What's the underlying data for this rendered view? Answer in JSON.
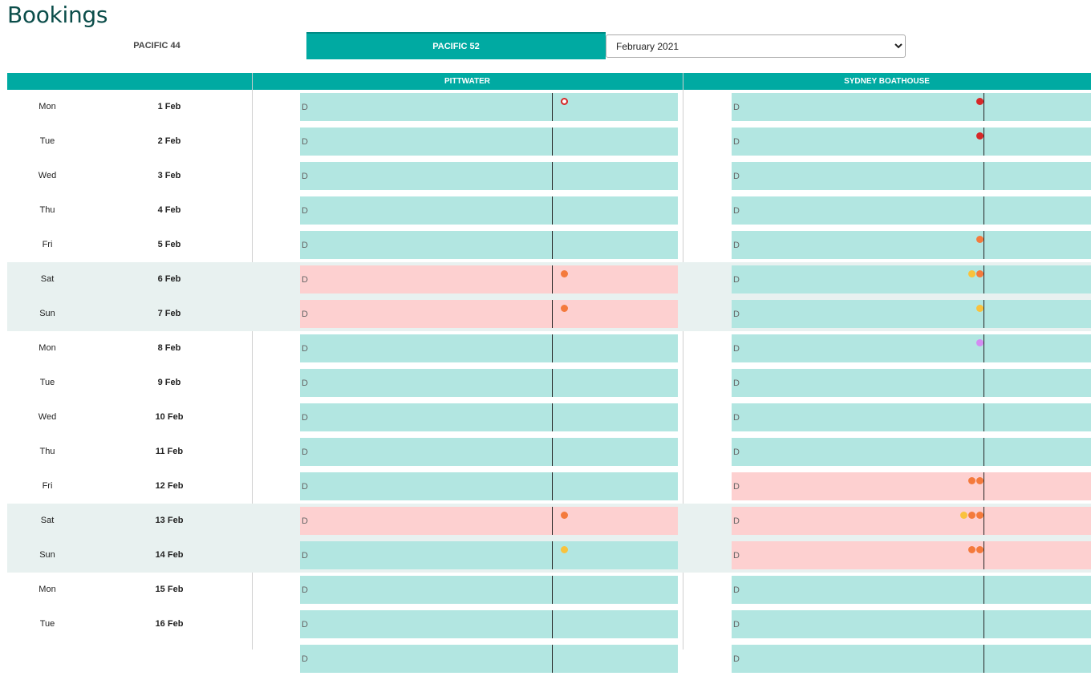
{
  "title": "Bookings",
  "vessels": [
    {
      "label": "PACIFIC 44",
      "active": false
    },
    {
      "label": "PACIFIC 52",
      "active": true
    }
  ],
  "month_select": {
    "value": "February 2021",
    "options": [
      "February 2021"
    ]
  },
  "columns": {
    "pittwater": "PITTWATER",
    "sydney": "SYDNEY BOATHOUSE"
  },
  "slot_mark": "D",
  "colors": {
    "accent": "#00aaa2",
    "available": "#b2e6e1",
    "booked": "#fdd0d0",
    "weekend_row": "#e8f1f0",
    "dot_red": "#d62828",
    "dot_orange": "#f47a3c",
    "dot_yellow": "#f9c23c",
    "dot_purple": "#d38cf2"
  },
  "days": [
    {
      "dow": "Mon",
      "date": "1 Feb",
      "weekend": false,
      "pittwater": {
        "status": "avail",
        "dots": [
          {
            "color": "#d62828",
            "outline": true
          }
        ]
      },
      "sydney": {
        "status": "avail",
        "dots": [
          {
            "color": "#d62828"
          }
        ]
      }
    },
    {
      "dow": "Tue",
      "date": "2 Feb",
      "weekend": false,
      "pittwater": {
        "status": "avail",
        "dots": []
      },
      "sydney": {
        "status": "avail",
        "dots": [
          {
            "color": "#d62828"
          }
        ]
      }
    },
    {
      "dow": "Wed",
      "date": "3 Feb",
      "weekend": false,
      "pittwater": {
        "status": "avail",
        "dots": []
      },
      "sydney": {
        "status": "avail",
        "dots": []
      }
    },
    {
      "dow": "Thu",
      "date": "4 Feb",
      "weekend": false,
      "pittwater": {
        "status": "avail",
        "dots": []
      },
      "sydney": {
        "status": "avail",
        "dots": []
      }
    },
    {
      "dow": "Fri",
      "date": "5 Feb",
      "weekend": false,
      "pittwater": {
        "status": "avail",
        "dots": []
      },
      "sydney": {
        "status": "avail",
        "dots": [
          {
            "color": "#f47a3c"
          }
        ]
      }
    },
    {
      "dow": "Sat",
      "date": "6 Feb",
      "weekend": true,
      "pittwater": {
        "status": "busy",
        "dots": [
          {
            "color": "#f47a3c"
          }
        ]
      },
      "sydney": {
        "status": "avail",
        "dots": [
          {
            "color": "#f9c23c"
          },
          {
            "color": "#f47a3c"
          }
        ]
      }
    },
    {
      "dow": "Sun",
      "date": "7 Feb",
      "weekend": true,
      "pittwater": {
        "status": "busy",
        "dots": [
          {
            "color": "#f47a3c"
          }
        ]
      },
      "sydney": {
        "status": "avail",
        "dots": [
          {
            "color": "#f9c23c"
          }
        ]
      }
    },
    {
      "dow": "Mon",
      "date": "8 Feb",
      "weekend": false,
      "pittwater": {
        "status": "avail",
        "dots": []
      },
      "sydney": {
        "status": "avail",
        "dots": [
          {
            "color": "#d38cf2"
          }
        ]
      }
    },
    {
      "dow": "Tue",
      "date": "9 Feb",
      "weekend": false,
      "pittwater": {
        "status": "avail",
        "dots": []
      },
      "sydney": {
        "status": "avail",
        "dots": []
      }
    },
    {
      "dow": "Wed",
      "date": "10 Feb",
      "weekend": false,
      "pittwater": {
        "status": "avail",
        "dots": []
      },
      "sydney": {
        "status": "avail",
        "dots": []
      }
    },
    {
      "dow": "Thu",
      "date": "11 Feb",
      "weekend": false,
      "pittwater": {
        "status": "avail",
        "dots": []
      },
      "sydney": {
        "status": "avail",
        "dots": []
      }
    },
    {
      "dow": "Fri",
      "date": "12 Feb",
      "weekend": false,
      "pittwater": {
        "status": "avail",
        "dots": []
      },
      "sydney": {
        "status": "busy",
        "dots": [
          {
            "color": "#f47a3c"
          },
          {
            "color": "#f47a3c"
          }
        ]
      }
    },
    {
      "dow": "Sat",
      "date": "13 Feb",
      "weekend": true,
      "pittwater": {
        "status": "busy",
        "dots": [
          {
            "color": "#f47a3c"
          }
        ]
      },
      "sydney": {
        "status": "busy",
        "dots": [
          {
            "color": "#f9c23c"
          },
          {
            "color": "#f47a3c"
          },
          {
            "color": "#f47a3c"
          }
        ]
      }
    },
    {
      "dow": "Sun",
      "date": "14 Feb",
      "weekend": true,
      "pittwater": {
        "status": "avail",
        "dots": [
          {
            "color": "#f9c23c"
          }
        ]
      },
      "sydney": {
        "status": "busy",
        "dots": [
          {
            "color": "#f47a3c"
          },
          {
            "color": "#f47a3c"
          }
        ]
      }
    },
    {
      "dow": "Mon",
      "date": "15 Feb",
      "weekend": false,
      "pittwater": {
        "status": "avail",
        "dots": []
      },
      "sydney": {
        "status": "avail",
        "dots": []
      }
    },
    {
      "dow": "Tue",
      "date": "16 Feb",
      "weekend": false,
      "pittwater": {
        "status": "avail",
        "dots": []
      },
      "sydney": {
        "status": "avail",
        "dots": []
      }
    },
    {
      "dow": "",
      "date": "",
      "weekend": false,
      "pittwater": {
        "status": "avail",
        "dots": []
      },
      "sydney": {
        "status": "avail",
        "dots": []
      }
    }
  ]
}
